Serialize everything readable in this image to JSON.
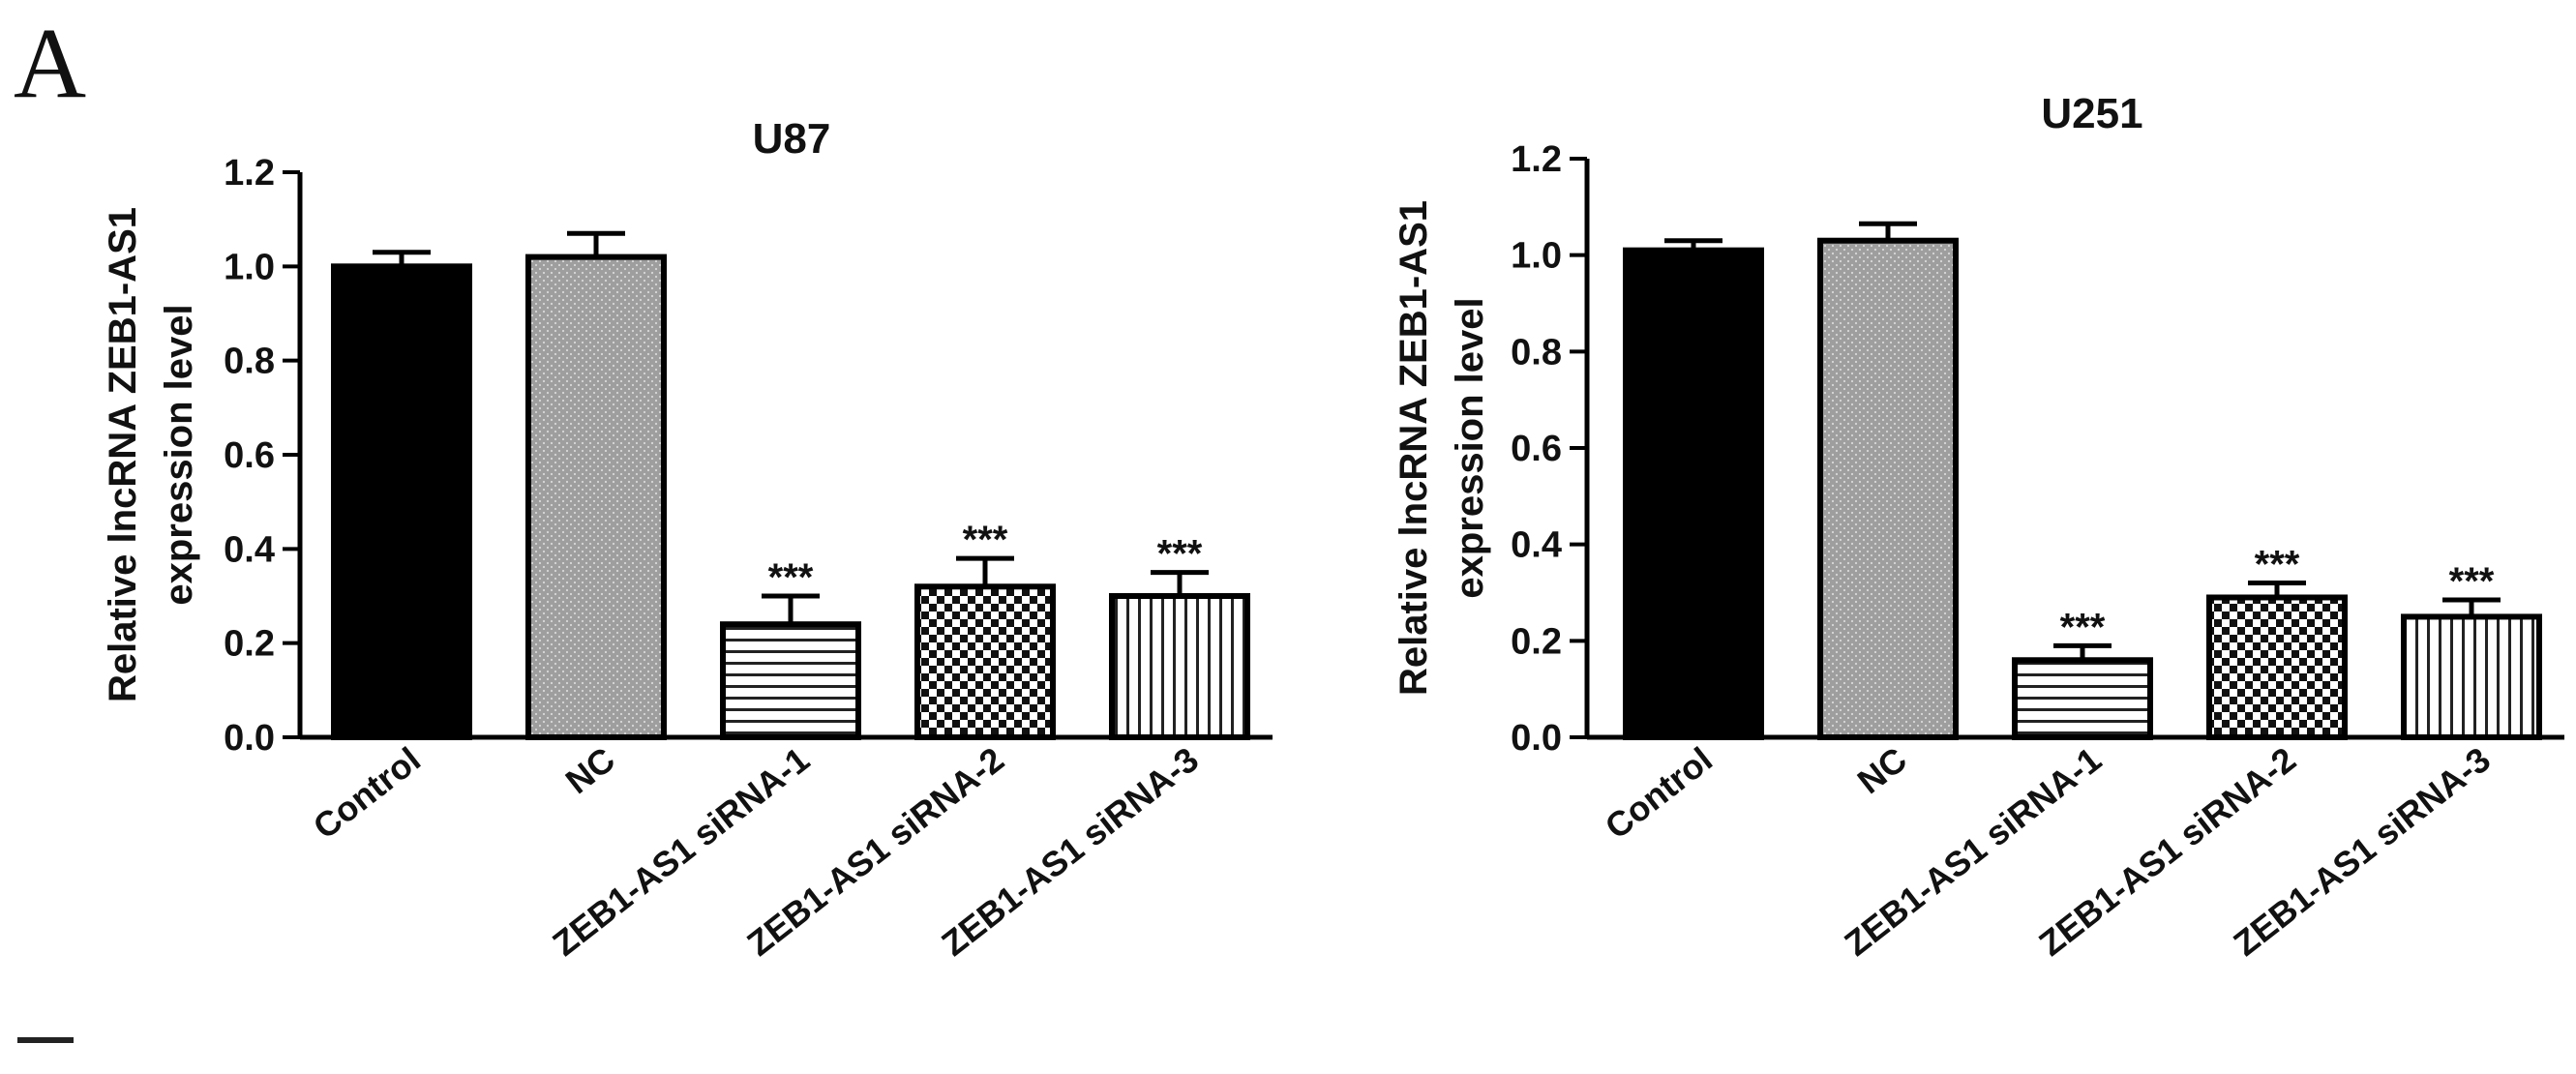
{
  "figure": {
    "panel_label": "A"
  },
  "chart_data": [
    {
      "type": "bar",
      "title": "U87",
      "xlabel": "",
      "ylabel_lines": [
        "Relative lncRNA ZEB1-AS1",
        "expression level"
      ],
      "ylim": [
        0,
        1.2
      ],
      "yticks": [
        "0.0",
        "0.2",
        "0.4",
        "0.6",
        "0.8",
        "1.0",
        "1.2"
      ],
      "grid": false,
      "categories": [
        "Control",
        "NC",
        "ZEB1-AS1 siRNA-1",
        "ZEB1-AS1 siRNA-2",
        "ZEB1-AS1 siRNA-3"
      ],
      "values": [
        1.0,
        1.02,
        0.24,
        0.32,
        0.3
      ],
      "errors": [
        0.03,
        0.05,
        0.06,
        0.06,
        0.05
      ],
      "significance": [
        "",
        "",
        "***",
        "***",
        "***"
      ],
      "fills": [
        "solid-black",
        "dots-gray",
        "horizontal-lines",
        "checkerboard",
        "vertical-lines"
      ]
    },
    {
      "type": "bar",
      "title": "U251",
      "xlabel": "",
      "ylabel_lines": [
        "Relative lncRNA ZEB1-AS1",
        "expression level"
      ],
      "ylim": [
        0,
        1.2
      ],
      "yticks": [
        "0.0",
        "0.2",
        "0.4",
        "0.6",
        "0.8",
        "1.0",
        "1.2"
      ],
      "grid": false,
      "categories": [
        "Control",
        "NC",
        "ZEB1-AS1 siRNA-1",
        "ZEB1-AS1 siRNA-2",
        "ZEB1-AS1 siRNA-3"
      ],
      "values": [
        1.01,
        1.03,
        0.16,
        0.29,
        0.25
      ],
      "errors": [
        0.02,
        0.035,
        0.03,
        0.03,
        0.035
      ],
      "significance": [
        "",
        "",
        "***",
        "***",
        "***"
      ],
      "fills": [
        "solid-black",
        "dots-gray",
        "horizontal-lines",
        "checkerboard",
        "vertical-lines"
      ]
    }
  ]
}
